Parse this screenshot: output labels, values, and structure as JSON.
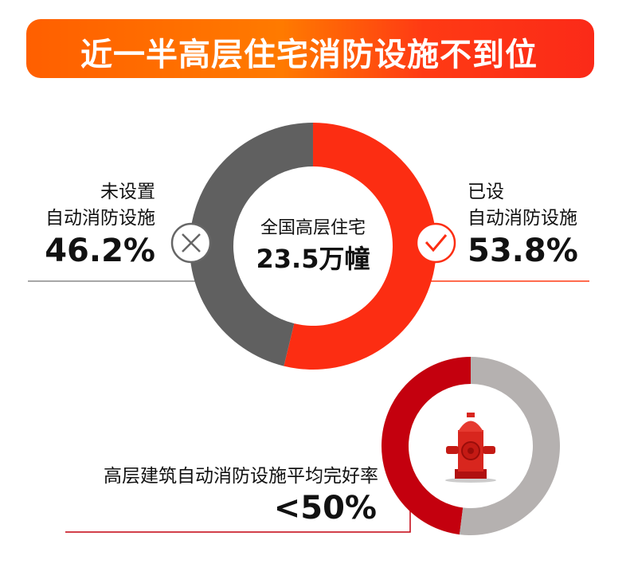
{
  "title": "近一半高层住宅消防设施不到位",
  "chart_data": [
    {
      "type": "pie",
      "donut": true,
      "center_label": "全国高层住宅",
      "center_value": "23.5万幢",
      "slices": [
        {
          "label_line1": "已设",
          "label_line2": "自动消防设施",
          "value": 53.8,
          "display": "53.8%",
          "color": "#fc2d12",
          "icon": "check-circle-icon"
        },
        {
          "label_line1": "未设置",
          "label_line2": "自动消防设施",
          "value": 46.2,
          "display": "46.2%",
          "color": "#606060",
          "icon": "x-circle-icon"
        }
      ]
    },
    {
      "type": "pie",
      "donut": true,
      "label": "高层建筑自动消防设施平均完好率",
      "display": "<50%",
      "value": 48,
      "colors": {
        "value": "#c4000e",
        "rest": "#b5b1b0"
      },
      "center_icon": "fire-hydrant-icon"
    }
  ]
}
